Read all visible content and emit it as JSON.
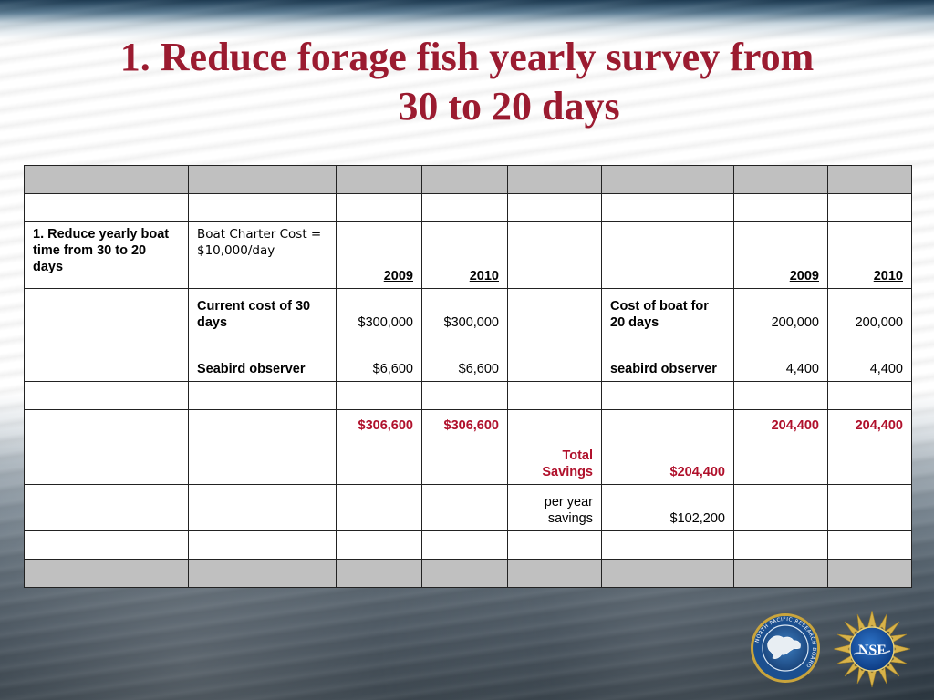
{
  "slide": {
    "title_line1": "1. Reduce forage fish yearly survey from",
    "title_line2": "30 to 20 days"
  },
  "table": {
    "label_row": {
      "item": "1. Reduce yearly boat time from 30 to 20 days",
      "note": "Boat Charter Cost = $10,000/day",
      "year_a_2009": "2009",
      "year_a_2010": "2010",
      "year_b_2009": "2009",
      "year_b_2010": "2010"
    },
    "rows": [
      {
        "label_a": "Current cost of 30 days",
        "a_2009": "$300,000",
        "a_2010": "$300,000",
        "label_b": "Cost of boat for 20 days",
        "b_2009": "200,000",
        "b_2010": "200,000"
      },
      {
        "label_a": "Seabird observer",
        "a_2009": "$6,600",
        "a_2010": "$6,600",
        "label_b": "seabird observer",
        "b_2009": "4,400",
        "b_2010": "4,400"
      }
    ],
    "totals": {
      "a_2009": "$306,600",
      "a_2010": "$306,600",
      "b_2009": "204,400",
      "b_2010": "204,400"
    },
    "total_savings": {
      "label": "Total Savings",
      "value": "$204,400"
    },
    "per_year": {
      "label": "per year savings",
      "value": "$102,200"
    }
  },
  "logos": {
    "npr_name": "NORTH PACIFIC RESEARCH BOARD",
    "nsf_text": "NSF"
  },
  "colors": {
    "title": "#9b1b30",
    "total": "#b0102b",
    "header_row": "#c0c0c0"
  }
}
